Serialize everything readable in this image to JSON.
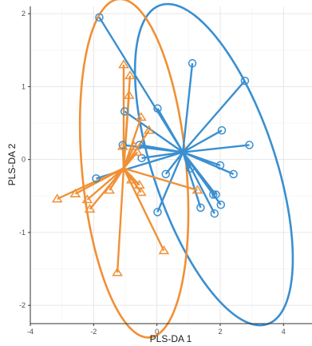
{
  "chart_data": {
    "type": "scatter",
    "title": "",
    "xlabel": "PLS-DA 1",
    "ylabel": "PLS-DA 2",
    "xlim": [
      -4.0,
      4.9
    ],
    "ylim": [
      -2.25,
      2.1
    ],
    "x_ticks": [
      -4,
      -2,
      0,
      2,
      4
    ],
    "x_tick_labels": [
      "-4",
      "-2",
      "0",
      "2",
      "4"
    ],
    "y_ticks": [
      -2,
      -1,
      0,
      1,
      2
    ],
    "y_tick_labels": [
      "-2",
      "-1",
      "0",
      "1",
      "2"
    ],
    "grid": true,
    "legend": "none",
    "series": [
      {
        "marker": "circle",
        "color": "#3a8fd0",
        "centroid": [
          0.82,
          0.1
        ],
        "ellipse": {
          "cx": 1.8,
          "cy": -0.07,
          "rx": 2.97,
          "ry": 1.5,
          "angle_deg": -39
        },
        "points": [
          [
            -1.82,
            1.95
          ],
          [
            1.12,
            1.32
          ],
          [
            2.78,
            1.08
          ],
          [
            0.02,
            0.7
          ],
          [
            -1.02,
            0.66
          ],
          [
            2.05,
            0.4
          ],
          [
            2.92,
            0.2
          ],
          [
            -1.08,
            0.2
          ],
          [
            -0.55,
            0.2
          ],
          [
            -0.48,
            0.02
          ],
          [
            1.05,
            -0.12
          ],
          [
            2.0,
            -0.08
          ],
          [
            2.42,
            -0.2
          ],
          [
            0.28,
            -0.2
          ],
          [
            -1.92,
            -0.26
          ],
          [
            1.78,
            -0.48
          ],
          [
            1.86,
            -0.48
          ],
          [
            2.02,
            -0.62
          ],
          [
            1.38,
            -0.66
          ],
          [
            0.02,
            -0.72
          ],
          [
            1.82,
            -0.74
          ]
        ]
      },
      {
        "marker": "triangle",
        "color": "#f09035",
        "centroid": [
          -1.05,
          -0.12
        ],
        "ellipse": {
          "cx": -0.72,
          "cy": -0.12,
          "rx": 2.4,
          "ry": 1.6,
          "angle_deg": -70
        },
        "points": [
          [
            -1.05,
            1.3
          ],
          [
            -0.85,
            1.15
          ],
          [
            -0.88,
            0.88
          ],
          [
            -0.5,
            0.58
          ],
          [
            -0.25,
            0.4
          ],
          [
            -1.08,
            0.18
          ],
          [
            -0.72,
            0.18
          ],
          [
            -0.62,
            0.1
          ],
          [
            -0.8,
            -0.28
          ],
          [
            -0.55,
            -0.35
          ],
          [
            1.28,
            -0.42
          ],
          [
            -1.5,
            -0.42
          ],
          [
            -0.5,
            -0.45
          ],
          [
            -2.58,
            -0.47
          ],
          [
            -3.15,
            -0.54
          ],
          [
            -2.2,
            -0.55
          ],
          [
            -2.12,
            -0.68
          ],
          [
            0.22,
            -1.25
          ],
          [
            -1.25,
            -1.55
          ]
        ]
      }
    ]
  }
}
